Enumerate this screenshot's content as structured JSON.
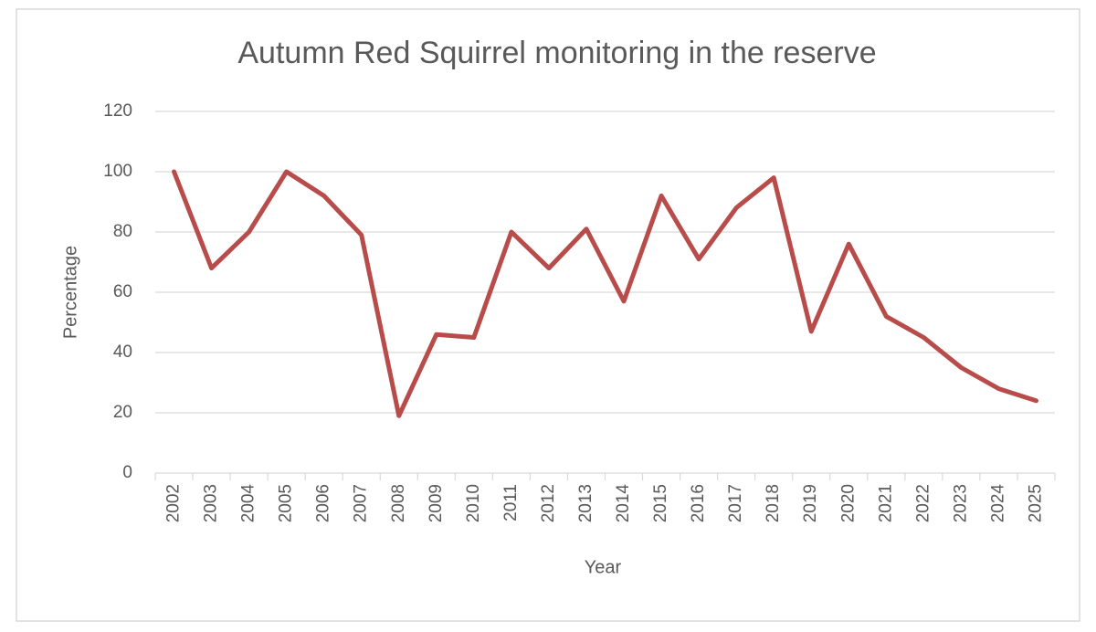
{
  "chart_data": {
    "type": "line",
    "title": "Autumn Red Squirrel monitoring in the reserve",
    "x_label": "Year",
    "y_label": "Percentage",
    "categories": [
      "2002",
      "2003",
      "2004",
      "2005",
      "2006",
      "2007",
      "2008",
      "2009",
      "2010",
      "2011",
      "2012",
      "2013",
      "2014",
      "2015",
      "2016",
      "2017",
      "2018",
      "2019",
      "2020",
      "2021",
      "2022",
      "2023",
      "2024",
      "2025"
    ],
    "series": [
      {
        "name": "Percentage",
        "color": "#b84c4a",
        "values": [
          100,
          68,
          80,
          100,
          92,
          79,
          19,
          46,
          45,
          80,
          68,
          81,
          57,
          92,
          71,
          88,
          98,
          47,
          76,
          52,
          45,
          35,
          28,
          24
        ]
      }
    ],
    "ylim": [
      0,
      120
    ],
    "yticks": [
      0,
      20,
      40,
      60,
      80,
      100,
      120
    ],
    "grid": true
  }
}
